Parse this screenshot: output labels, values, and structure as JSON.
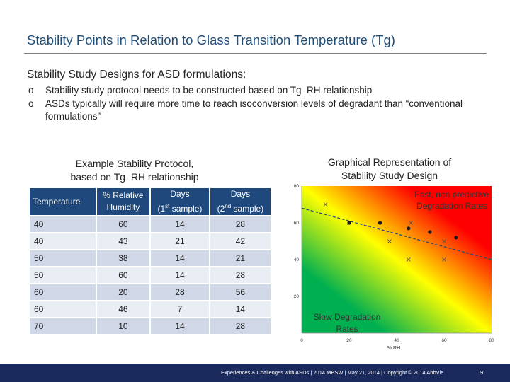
{
  "slide": {
    "title": "Stability Points in Relation to Glass Transition Temperature (Tg)",
    "subtitle": "Stability Study Designs for ASD formulations:",
    "bullet_marker": "o",
    "bullets": [
      "Stability study protocol needs to be constructed based on Tg–RH relationship",
      "ASDs typically will require more time to reach isoconversion levels of degradant than “conventional formulations”"
    ]
  },
  "table": {
    "caption_line1": "Example Stability Protocol,",
    "caption_line2": "based on Tg–RH relationship",
    "headers": {
      "temperature": "Temperature",
      "rh_line1": "% Relative",
      "rh_line2": "Humidity",
      "days": "Days",
      "first_open": "(1",
      "first_sup": "st",
      "first_close": " sample)",
      "second_open": "(2",
      "second_sup": "nd",
      "second_close": " sample)"
    },
    "rows": [
      [
        "40",
        "60",
        "14",
        "28"
      ],
      [
        "40",
        "43",
        "21",
        "42"
      ],
      [
        "50",
        "38",
        "14",
        "21"
      ],
      [
        "50",
        "60",
        "14",
        "28"
      ],
      [
        "60",
        "20",
        "28",
        "56"
      ],
      [
        "60",
        "46",
        "7",
        "14"
      ],
      [
        "70",
        "10",
        "14",
        "28"
      ]
    ]
  },
  "chart_data": {
    "type": "scatter",
    "title": "Graphical Representation of Stability Study Design",
    "title_line1": "Graphical Representation of",
    "title_line2": "Stability Study Design",
    "xlabel": "% RH",
    "ylabel": "",
    "xlim": [
      0,
      80
    ],
    "ylim": [
      0,
      80
    ],
    "xticks": [
      "0",
      "20",
      "40",
      "60",
      "80"
    ],
    "yticks": [
      "20",
      "40",
      "60",
      "80"
    ],
    "background": "gradient green (lower-left) → yellow → red (upper-right)",
    "colors": {
      "green": "#00b050",
      "yellow": "#ffff00",
      "red": "#ff0000",
      "trendline": "#1f497d"
    },
    "annotations": {
      "fast_line1": "Fast, non predictive",
      "fast_line2": "Degradation Rates",
      "slow_line1": "Slow Degradation",
      "slow_line2": "Rates"
    },
    "series": [
      {
        "marker": "cross",
        "x": [
          10,
          20,
          37,
          45,
          46,
          60,
          60
        ],
        "y": [
          70,
          60,
          50,
          40,
          60,
          50,
          40
        ]
      },
      {
        "marker": "dot",
        "x": [
          20,
          33,
          45,
          54,
          65
        ],
        "y": [
          60,
          60,
          57,
          55,
          52
        ]
      }
    ],
    "trendline": {
      "x": [
        0,
        80
      ],
      "y": [
        68,
        40
      ]
    }
  },
  "footer": {
    "text": "Experiences & Challenges with ASDs | 2014 MBSW | May 21, 2014 | Copyright © 2014 AbbVie",
    "page": "9"
  }
}
